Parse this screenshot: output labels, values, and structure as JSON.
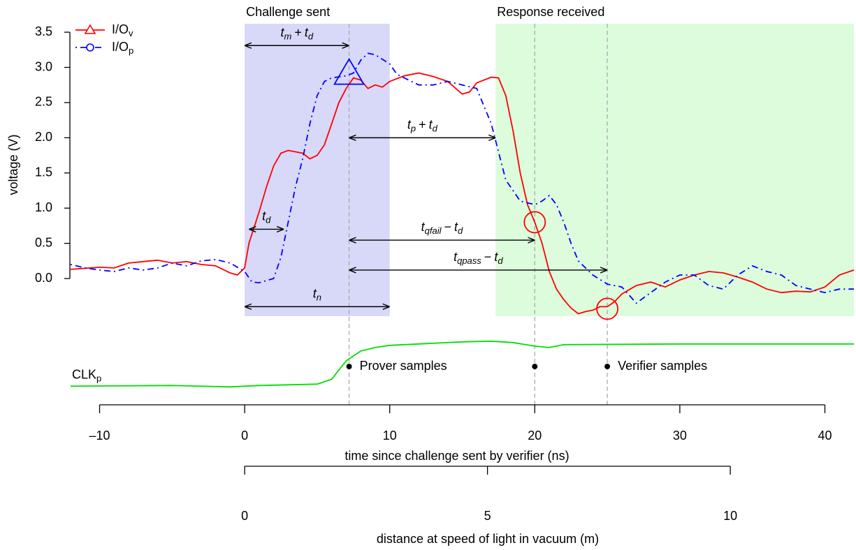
{
  "chart_data": {
    "type": "line",
    "x_label": "time since challenge sent by verifier (ns)",
    "y_label": "voltage (V)",
    "xlim": [
      -12,
      42
    ],
    "ylim": [
      -0.535,
      3.62
    ],
    "xticks": [
      {
        "value": -10,
        "label": "–10"
      },
      0,
      10,
      20,
      30,
      40
    ],
    "yticks": [
      {
        "value": 0,
        "label": "0.0"
      },
      {
        "value": 0.5,
        "label": "0.5"
      },
      {
        "value": 1,
        "label": "1.0"
      },
      {
        "value": 1.5,
        "label": "1.5"
      },
      {
        "value": 2,
        "label": "2.0"
      },
      {
        "value": 2.5,
        "label": "2.5"
      },
      {
        "value": 3,
        "label": "3.0"
      },
      {
        "value": 3.5,
        "label": "3.5"
      }
    ],
    "distance_axis": {
      "label": "distance at speed of light in vacuum (m)",
      "lim": [
        0,
        10
      ],
      "ticks": [
        0,
        5,
        10
      ]
    },
    "regions": [
      {
        "label": "Challenge sent",
        "x": [
          0,
          10
        ],
        "color": "#d8d8f8"
      },
      {
        "label": "Response received",
        "x": [
          17.3,
          42
        ],
        "color": "#dcfcdc"
      }
    ],
    "series": [
      {
        "name": "I/O",
        "sub": "v",
        "color": "#ff0000",
        "marker": "triangle",
        "dash": "solid",
        "x": [
          -12,
          -10,
          -9,
          -8,
          -7,
          -6,
          -5,
          -4,
          -3,
          -2,
          -1,
          -0.5,
          0,
          0.3,
          1,
          1.5,
          2,
          2.5,
          3,
          4,
          4.5,
          5,
          5.5,
          6,
          6.5,
          7,
          7.5,
          8,
          8.5,
          9,
          9.5,
          10,
          11,
          12,
          13,
          14,
          15,
          15.5,
          16,
          17,
          17.5,
          18,
          18.5,
          19,
          19.5,
          20,
          20.5,
          21,
          21.5,
          22,
          22.5,
          23,
          23.5,
          24,
          24.5,
          25,
          25.5,
          26,
          27,
          28,
          29,
          30,
          31,
          32,
          33,
          34,
          35,
          36,
          37,
          38,
          39,
          40,
          41,
          42
        ],
        "values": [
          0.13,
          0.16,
          0.15,
          0.22,
          0.24,
          0.26,
          0.22,
          0.24,
          0.2,
          0.18,
          0.08,
          0.05,
          0.15,
          0.5,
          0.95,
          1.3,
          1.6,
          1.78,
          1.82,
          1.78,
          1.7,
          1.75,
          1.9,
          2.2,
          2.5,
          2.7,
          2.85,
          2.82,
          2.7,
          2.75,
          2.72,
          2.8,
          2.88,
          2.92,
          2.87,
          2.8,
          2.62,
          2.65,
          2.78,
          2.86,
          2.85,
          2.6,
          2.1,
          1.5,
          1.05,
          0.8,
          0.5,
          0.1,
          -0.15,
          -0.3,
          -0.42,
          -0.5,
          -0.47,
          -0.45,
          -0.4,
          -0.4,
          -0.33,
          -0.22,
          -0.1,
          -0.05,
          -0.12,
          -0.02,
          0.05,
          0.1,
          0.08,
          0.02,
          -0.05,
          -0.15,
          -0.2,
          -0.18,
          -0.19,
          -0.12,
          0.05,
          0.12
        ]
      },
      {
        "name": "I/O",
        "sub": "p",
        "color": "#0000ff",
        "marker": "circle",
        "dash": "dashdot",
        "x": [
          -12,
          -11,
          -10,
          -9,
          -8,
          -7,
          -6,
          -5,
          -4,
          -3,
          -2,
          -1,
          0,
          0.5,
          1,
          2,
          2.5,
          3,
          3.5,
          4,
          4.5,
          5,
          5.5,
          6,
          7,
          7.5,
          8,
          8.5,
          9,
          10,
          10.5,
          11,
          12,
          13,
          14,
          15,
          16,
          16.5,
          17,
          17.5,
          18,
          18.5,
          19,
          20,
          20.5,
          21,
          21.5,
          22,
          22.5,
          23,
          24,
          25,
          26,
          27,
          28,
          29,
          30,
          31,
          32,
          33,
          34,
          35,
          36,
          37,
          38,
          39,
          40,
          41,
          42
        ],
        "values": [
          0.2,
          0.15,
          0.12,
          0.1,
          0.15,
          0.12,
          0.15,
          0.22,
          0.18,
          0.25,
          0.27,
          0.22,
          0.1,
          -0.05,
          -0.06,
          0,
          0.3,
          0.8,
          1.3,
          1.7,
          2.2,
          2.6,
          2.8,
          2.85,
          2.88,
          2.92,
          3.1,
          3.2,
          3.18,
          3.05,
          2.9,
          2.85,
          2.75,
          2.75,
          2.8,
          2.75,
          2.7,
          2.45,
          2.2,
          1.8,
          1.4,
          1.25,
          1.1,
          1.05,
          1.1,
          1.18,
          1.05,
          0.8,
          0.5,
          0.25,
          0.05,
          -0.08,
          -0.12,
          -0.35,
          -0.2,
          -0.05,
          0.05,
          0.05,
          -0.1,
          -0.15,
          0.05,
          0.18,
          0.1,
          0.05,
          -0.1,
          -0.15,
          -0.2,
          -0.15,
          -0.15
        ]
      },
      {
        "name": "CLK",
        "sub": "p",
        "color": "#00e000",
        "dash": "solid",
        "x": [
          -12,
          -5,
          -1,
          1,
          5,
          6,
          6.5,
          7,
          7.5,
          8,
          9,
          10,
          12,
          15,
          17,
          18.5,
          20,
          21,
          22,
          30,
          42
        ],
        "values": [
          -1.53,
          -1.52,
          -1.54,
          -1.52,
          -1.5,
          -1.43,
          -1.3,
          -1.17,
          -1.1,
          -1.03,
          -0.98,
          -0.95,
          -0.93,
          -0.9,
          -0.89,
          -0.91,
          -0.96,
          -0.98,
          -0.94,
          -0.93,
          -0.93
        ]
      }
    ],
    "markers": [
      {
        "shape": "triangle",
        "x": 7.2,
        "y": 2.9,
        "color": "#0000ff"
      },
      {
        "shape": "circle",
        "x": 20,
        "y": 0.8,
        "color": "#ff0000"
      },
      {
        "shape": "circle",
        "x": 25,
        "y": -0.43,
        "color": "#ff0000"
      }
    ],
    "samples": [
      {
        "x": 7.2,
        "y": -1.25,
        "label": "Prover samples"
      },
      {
        "x": 20,
        "y": -1.25
      },
      {
        "x": 25,
        "y": -1.25,
        "label": "Verifier samples"
      }
    ],
    "arrows": [
      {
        "from": 0,
        "to": 7.2,
        "y": 3.31,
        "label": [
          {
            "t": "t",
            "sub": "m"
          },
          {
            "op": "+"
          },
          {
            "t": "t",
            "sub": "d"
          }
        ]
      },
      {
        "from": 7.2,
        "to": 17.3,
        "y": 2.0,
        "label": [
          {
            "t": "t",
            "sub": "p"
          },
          {
            "op": "+"
          },
          {
            "t": "t",
            "sub": "d"
          }
        ]
      },
      {
        "from": 0.3,
        "to": 2.7,
        "y": 0.7,
        "label": [
          {
            "t": "t",
            "sub": "d"
          }
        ]
      },
      {
        "from": 7.2,
        "to": 20,
        "y": 0.545,
        "label": [
          {
            "t": "t",
            "sub": "qfail"
          },
          {
            "op": "−"
          },
          {
            "t": "t",
            "sub": "d"
          }
        ]
      },
      {
        "from": 7.2,
        "to": 25,
        "y": 0.12,
        "label": [
          {
            "t": "t",
            "sub": "qpass"
          },
          {
            "op": "−"
          },
          {
            "t": "t",
            "sub": "d"
          }
        ]
      },
      {
        "from": 0,
        "to": 10,
        "y": -0.4,
        "label": [
          {
            "t": "t",
            "sub": "n"
          }
        ]
      }
    ]
  }
}
